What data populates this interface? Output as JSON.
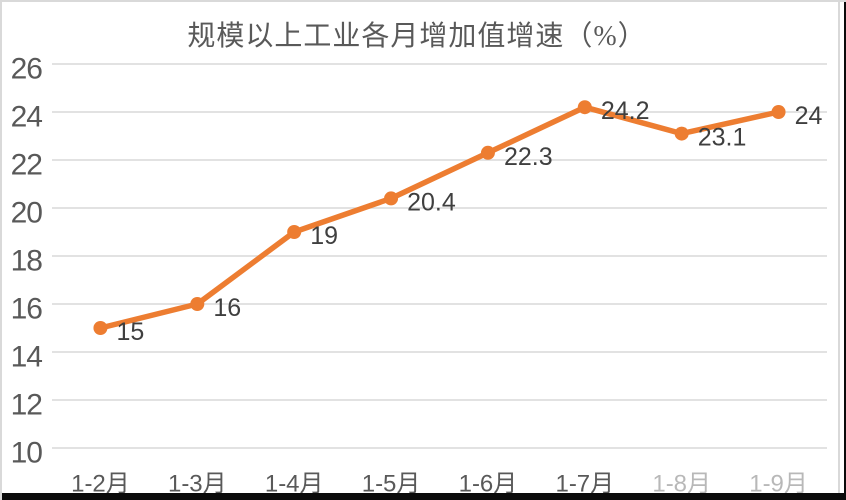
{
  "chart_data": {
    "type": "line",
    "title": "规模以上工业各月增加值增速（%）",
    "categories": [
      "1-2月",
      "1-3月",
      "1-4月",
      "1-5月",
      "1-6月",
      "1-7月",
      "1-8月",
      "1-9月"
    ],
    "values": [
      15,
      16,
      19,
      20.4,
      22.3,
      24.2,
      23.1,
      24
    ],
    "point_labels": [
      "15",
      "16",
      "19",
      "20.4",
      "22.3",
      "24.2",
      "23.1",
      "24"
    ],
    "xlabel": "",
    "ylabel": "",
    "ylim": [
      10,
      26
    ],
    "yticks": [
      10,
      12,
      14,
      16,
      18,
      20,
      22,
      24,
      26
    ],
    "grid": "horizontal",
    "legend": "none",
    "faded_category_indices": [
      6,
      7
    ],
    "colors": {
      "line": "#ED7D31",
      "marker": "#ED7D31",
      "gridline": "#D9D9D9",
      "tick_text": "#595959",
      "data_label_text": "#3F3F3F",
      "title_text": "#595959",
      "frame_border": "#D9D9D9",
      "bottom_bar": "#0B0B0B"
    }
  }
}
